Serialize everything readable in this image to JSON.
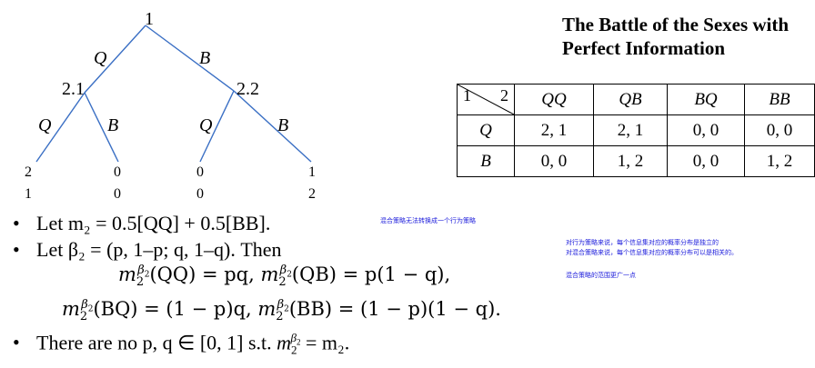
{
  "title_line1": "The Battle of the Sexes with",
  "title_line2": "Perfect Information",
  "tree": {
    "root": "1",
    "root_left_action": "Q",
    "root_right_action": "B",
    "left_node": "2.1",
    "right_node": "2.2",
    "left_node_left_action": "Q",
    "left_node_right_action": "B",
    "right_node_left_action": "Q",
    "right_node_right_action": "B",
    "payoffs": [
      {
        "p1": "2",
        "p2": "1"
      },
      {
        "p1": "0",
        "p2": "0"
      },
      {
        "p1": "0",
        "p2": "0"
      },
      {
        "p1": "1",
        "p2": "2"
      }
    ]
  },
  "table": {
    "corner_row": "1",
    "corner_col": "2",
    "columns": [
      "QQ",
      "QB",
      "BQ",
      "BB"
    ],
    "rows": [
      {
        "label": "Q",
        "cells": [
          "2, 1",
          "2, 1",
          "0, 0",
          "0, 0"
        ]
      },
      {
        "label": "B",
        "cells": [
          "0, 0",
          "1, 2",
          "0, 0",
          "1, 2"
        ]
      }
    ]
  },
  "bullets": {
    "b1": "Let m₂ = 0.5[QQ] + 0.5[BB].",
    "b2": "Let β₂ = (p, 1–p; q, 1–q). Then",
    "eq1": "(QQ) = pq, ",
    "eq1b": "(QB) = p(1 − q),",
    "eq2": "(BQ) = (1 − p)q, ",
    "eq2b": "(BB) = (1 − p)(1 − q).",
    "b3a": "There are no p, q ∈ [0, 1] s.t. ",
    "b3b": " = m₂."
  },
  "notes": {
    "n1": "混合策略无法转换成一个行为策略",
    "n2": "对行为策略来说，每个信息集对应的概率分布是独立的",
    "n3": "对混合策略来说，每个信息集对应的概率分布可以是相关的。",
    "n4": "混合策略的范围更广一点"
  },
  "colors": {
    "tree_lines": "#3a6fc4",
    "notes": "#1a1adb"
  }
}
